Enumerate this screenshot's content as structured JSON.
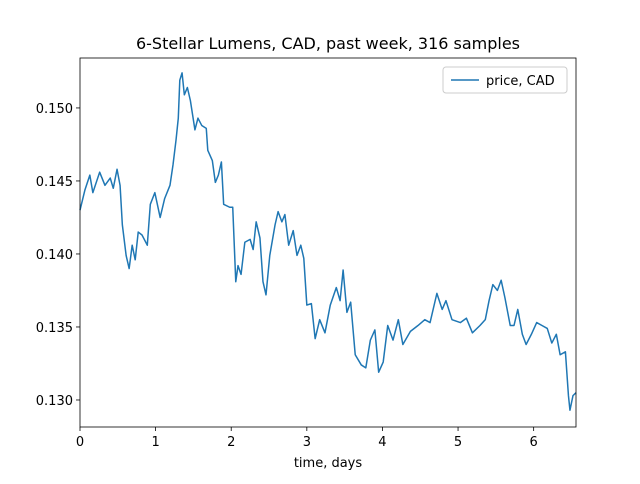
{
  "chart_data": {
    "type": "line",
    "title": "6-Stellar Lumens, CAD, past week, 316 samples",
    "xlabel": "time, days",
    "x": [
      0,
      0.066,
      0.13,
      0.17,
      0.26,
      0.33,
      0.4,
      0.44,
      0.49,
      0.53,
      0.56,
      0.61,
      0.65,
      0.69,
      0.73,
      0.77,
      0.82,
      0.89,
      0.93,
      0.99,
      1.06,
      1.12,
      1.19,
      1.23,
      1.27,
      1.3,
      1.32,
      1.35,
      1.38,
      1.42,
      1.46,
      1.49,
      1.52,
      1.56,
      1.61,
      1.67,
      1.69,
      1.75,
      1.79,
      1.83,
      1.87,
      1.9,
      1.98,
      2.02,
      2.06,
      2.09,
      2.13,
      2.18,
      2.25,
      2.29,
      2.33,
      2.38,
      2.42,
      2.46,
      2.51,
      2.58,
      2.62,
      2.67,
      2.71,
      2.76,
      2.82,
      2.87,
      2.92,
      2.96,
      3.0,
      3.06,
      3.11,
      3.17,
      3.24,
      3.31,
      3.39,
      3.44,
      3.48,
      3.53,
      3.58,
      3.64,
      3.72,
      3.78,
      3.84,
      3.9,
      3.95,
      4.01,
      4.07,
      4.14,
      4.21,
      4.27,
      4.37,
      4.47,
      4.56,
      4.63,
      4.72,
      4.79,
      4.84,
      4.92,
      5.03,
      5.11,
      5.19,
      5.29,
      5.36,
      5.41,
      5.46,
      5.52,
      5.57,
      5.62,
      5.69,
      5.74,
      5.79,
      5.85,
      5.9,
      5.97,
      6.04,
      6.11,
      6.18,
      6.24,
      6.3,
      6.35,
      6.42,
      6.46,
      6.48,
      6.52,
      6.56
    ],
    "series": [
      {
        "name": "price, CAD",
        "color": "#1f77b4",
        "values": [
          0.143,
          0.1444,
          0.1454,
          0.1442,
          0.1456,
          0.1447,
          0.1452,
          0.1445,
          0.1458,
          0.1447,
          0.142,
          0.1399,
          0.139,
          0.1406,
          0.1396,
          0.1415,
          0.1413,
          0.1406,
          0.1434,
          0.1442,
          0.1425,
          0.1438,
          0.1447,
          0.1461,
          0.1478,
          0.1493,
          0.1519,
          0.1524,
          0.1509,
          0.1514,
          0.1505,
          0.1495,
          0.1485,
          0.1493,
          0.1488,
          0.1486,
          0.1471,
          0.1464,
          0.1449,
          0.1454,
          0.1463,
          0.1434,
          0.1432,
          0.1432,
          0.1381,
          0.1392,
          0.1386,
          0.1408,
          0.141,
          0.1403,
          0.1422,
          0.1411,
          0.1381,
          0.1372,
          0.1399,
          0.142,
          0.1429,
          0.1422,
          0.1427,
          0.1406,
          0.1416,
          0.1399,
          0.1406,
          0.1397,
          0.1365,
          0.1366,
          0.1342,
          0.1355,
          0.1346,
          0.1365,
          0.1377,
          0.1368,
          0.1389,
          0.136,
          0.1367,
          0.1331,
          0.1324,
          0.1322,
          0.1341,
          0.1348,
          0.1319,
          0.1326,
          0.1351,
          0.1341,
          0.1355,
          0.1338,
          0.1347,
          0.1351,
          0.1355,
          0.1353,
          0.1373,
          0.1362,
          0.1368,
          0.1355,
          0.1353,
          0.1356,
          0.1346,
          0.1351,
          0.1355,
          0.1368,
          0.1379,
          0.1375,
          0.1382,
          0.137,
          0.1351,
          0.1351,
          0.1362,
          0.1345,
          0.1338,
          0.1345,
          0.1353,
          0.1351,
          0.1349,
          0.1339,
          0.1345,
          0.1331,
          0.1333,
          0.1303,
          0.1293,
          0.1303,
          0.1305
        ]
      }
    ],
    "xlim": [
      0,
      6.56
    ],
    "ylim": [
      0.12815,
      0.15342
    ],
    "xticks": [
      0,
      1,
      2,
      3,
      4,
      5,
      6
    ],
    "yticks": [
      {
        "value": 0.13,
        "label": "0.130"
      },
      0.135,
      {
        "value": 0.14,
        "label": "0.140"
      },
      0.145,
      {
        "value": 0.15,
        "label": "0.150"
      }
    ],
    "legend": "upper right"
  }
}
